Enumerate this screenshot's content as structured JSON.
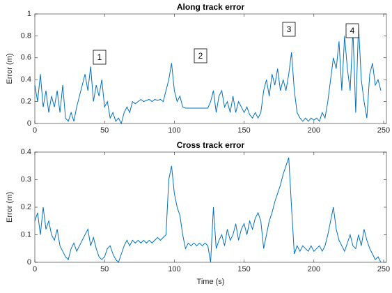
{
  "chart_data": [
    {
      "type": "line",
      "title": "Along track error",
      "ylabel": "Error (m)",
      "color": "#0072bd",
      "annotations": [
        "1",
        "2",
        "3",
        "4"
      ],
      "xlim": [
        0,
        252
      ],
      "xticks": [
        0,
        50,
        100,
        150,
        200,
        250
      ],
      "ylim": [
        0,
        1
      ],
      "yticks": [
        0,
        0.2,
        0.4,
        0.6,
        0.8,
        1
      ],
      "x": [
        0,
        2,
        4,
        6,
        8,
        10,
        12,
        14,
        16,
        18,
        20,
        22,
        24,
        26,
        28,
        30,
        32,
        34,
        36,
        38,
        40,
        42,
        44,
        46,
        48,
        50,
        52,
        54,
        56,
        58,
        60,
        62,
        64,
        66,
        68,
        70,
        72,
        74,
        76,
        78,
        80,
        82,
        84,
        86,
        88,
        90,
        92,
        94,
        96,
        98,
        100,
        102,
        104,
        106,
        108,
        110,
        112,
        114,
        116,
        118,
        120,
        122,
        124,
        126,
        128,
        130,
        132,
        134,
        136,
        138,
        140,
        142,
        144,
        146,
        148,
        150,
        152,
        154,
        156,
        158,
        160,
        162,
        164,
        166,
        168,
        170,
        172,
        174,
        176,
        178,
        180,
        182,
        184,
        186,
        188,
        190,
        192,
        194,
        196,
        198,
        200,
        202,
        204,
        206,
        208,
        210,
        212,
        214,
        216,
        218,
        220,
        222,
        224,
        226,
        228,
        230,
        232,
        234,
        236,
        238,
        240,
        242,
        244,
        246,
        248
      ],
      "values": [
        0.35,
        0.2,
        0.45,
        0.15,
        0.3,
        0.1,
        0.25,
        0.15,
        0.3,
        0.1,
        0.35,
        0.05,
        0.02,
        0.1,
        0.02,
        0.15,
        0.25,
        0.35,
        0.45,
        0.3,
        0.52,
        0.2,
        0.35,
        0.25,
        0.4,
        0.15,
        0.2,
        0.05,
        0.1,
        0.02,
        0.05,
        0,
        0.1,
        0.15,
        0.1,
        0.2,
        0.18,
        0.2,
        0.22,
        0.2,
        0.21,
        0.22,
        0.2,
        0.22,
        0.21,
        0.22,
        0.2,
        0.3,
        0.4,
        0.55,
        0.3,
        0.2,
        0.25,
        0.15,
        0.14,
        0.14,
        0.14,
        0.14,
        0.14,
        0.14,
        0.14,
        0.14,
        0.14,
        0.2,
        0.3,
        0.1,
        0.25,
        0.3,
        0.15,
        0.2,
        0.1,
        0.25,
        0.1,
        0.2,
        0.15,
        0.1,
        0.15,
        0.08,
        0.05,
        0.1,
        0.05,
        0.1,
        0.3,
        0.4,
        0.25,
        0.45,
        0.35,
        0.5,
        0.3,
        0.4,
        0.3,
        0.45,
        0.65,
        0.3,
        0.1,
        0.05,
        0.02,
        0.05,
        0.02,
        0.05,
        0.03,
        0.05,
        0.02,
        0.1,
        0.05,
        0.2,
        0.4,
        0.6,
        0.5,
        0.75,
        0.3,
        0.8,
        0.5,
        0.3,
        0.85,
        0.1,
        0.9,
        0.4,
        0.2,
        0.05,
        0.45,
        0.55,
        0.35,
        0.4,
        0.3
      ]
    },
    {
      "type": "line",
      "title": "Cross track error",
      "ylabel": "Error (m)",
      "xlabel": "Time (s)",
      "color": "#0072bd",
      "xlim": [
        0,
        252
      ],
      "xticks": [
        0,
        50,
        100,
        150,
        200,
        250
      ],
      "ylim": [
        0,
        0.4
      ],
      "yticks": [
        0,
        0.1,
        0.2,
        0.3,
        0.4
      ],
      "x": [
        0,
        2,
        4,
        6,
        8,
        10,
        12,
        14,
        16,
        18,
        20,
        22,
        24,
        26,
        28,
        30,
        32,
        34,
        36,
        38,
        40,
        42,
        44,
        46,
        48,
        50,
        52,
        54,
        56,
        58,
        60,
        62,
        64,
        66,
        68,
        70,
        72,
        74,
        76,
        78,
        80,
        82,
        84,
        86,
        88,
        90,
        92,
        94,
        96,
        98,
        100,
        102,
        104,
        106,
        108,
        110,
        112,
        114,
        116,
        118,
        120,
        122,
        124,
        126,
        128,
        130,
        132,
        134,
        136,
        138,
        140,
        142,
        144,
        146,
        148,
        150,
        152,
        154,
        156,
        158,
        160,
        162,
        164,
        166,
        168,
        170,
        172,
        174,
        176,
        178,
        180,
        182,
        184,
        186,
        188,
        190,
        192,
        194,
        196,
        198,
        200,
        202,
        204,
        206,
        208,
        210,
        212,
        214,
        216,
        218,
        220,
        222,
        224,
        226,
        228,
        230,
        232,
        234,
        236,
        238,
        240,
        242,
        244,
        246,
        248
      ],
      "values": [
        0.15,
        0.18,
        0.1,
        0.2,
        0.12,
        0.15,
        0.1,
        0.08,
        0.12,
        0.06,
        0.04,
        0.02,
        0.01,
        0.05,
        0.07,
        0.04,
        0.06,
        0.08,
        0.1,
        0.12,
        0.06,
        0.09,
        0.05,
        0.02,
        0.01,
        0.02,
        0.05,
        0.06,
        0.03,
        0.01,
        0,
        0.03,
        0.06,
        0.08,
        0.06,
        0.08,
        0.07,
        0.08,
        0.07,
        0.08,
        0.07,
        0.08,
        0.07,
        0.08,
        0.09,
        0.08,
        0.09,
        0.1,
        0.3,
        0.35,
        0.25,
        0.2,
        0.17,
        0.1,
        0.05,
        0.07,
        0.06,
        0.07,
        0.06,
        0.07,
        0.06,
        0.07,
        0.06,
        0,
        0.2,
        0.05,
        0.08,
        0.1,
        0.06,
        0.12,
        0.08,
        0.1,
        0.14,
        0.08,
        0.12,
        0.14,
        0.1,
        0.15,
        0.12,
        0.16,
        0.18,
        0.15,
        0.05,
        0.1,
        0.15,
        0.18,
        0.22,
        0.25,
        0.28,
        0.32,
        0.35,
        0.38,
        0.2,
        0.03,
        0.06,
        0.04,
        0.06,
        0.05,
        0.04,
        0.06,
        0.04,
        0.05,
        0.06,
        0.04,
        0.06,
        0.1,
        0.15,
        0.2,
        0.12,
        0.08,
        0.06,
        0.04,
        0.07,
        0.1,
        0.06,
        0.05,
        0.1,
        0.06,
        0.12,
        0.08,
        0.05,
        0.03,
        0.01,
        0.02,
        0
      ]
    }
  ]
}
